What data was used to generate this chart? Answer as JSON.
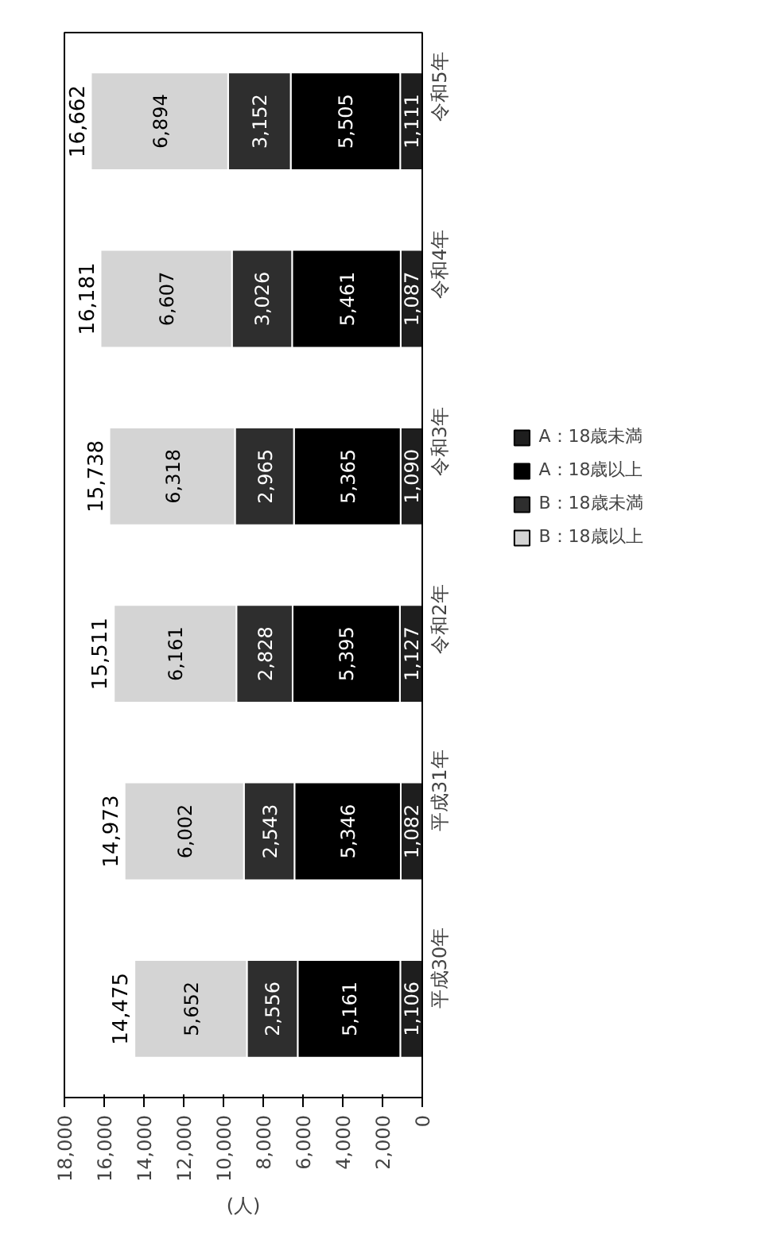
{
  "chart_data": {
    "type": "bar",
    "orientation": "horizontal",
    "stacked": true,
    "xlabel": "(人)",
    "categories": [
      "令和5年",
      "令和4年",
      "令和3年",
      "令和2年",
      "平成31年",
      "平成30年"
    ],
    "series": [
      {
        "name": "A：18歳未満",
        "color": "#1e1e1e",
        "values": [
          1111,
          1087,
          1090,
          1127,
          1082,
          1106
        ],
        "value_labels": [
          "1,111",
          "1,087",
          "1,090",
          "1,127",
          "1,082",
          "1,106"
        ]
      },
      {
        "name": "A：18歳以上",
        "color": "#000000",
        "values": [
          5505,
          5461,
          5365,
          5395,
          5346,
          5161
        ],
        "value_labels": [
          "5,505",
          "5,461",
          "5,365",
          "5,395",
          "5,346",
          "5,161"
        ]
      },
      {
        "name": "B：18歳未満",
        "color": "#2e2e2e",
        "values": [
          3152,
          3026,
          2965,
          2828,
          2543,
          2556
        ],
        "value_labels": [
          "3,152",
          "3,026",
          "2,965",
          "2,828",
          "2,543",
          "2,556"
        ]
      },
      {
        "name": "B：18歳以上",
        "color": "#d4d4d4",
        "values": [
          6894,
          6607,
          6318,
          6161,
          6002,
          5652
        ],
        "value_labels": [
          "6,894",
          "6,607",
          "6,318",
          "6,161",
          "6,002",
          "5,652"
        ]
      }
    ],
    "totals": [
      "16,662",
      "16,181",
      "15,738",
      "15,511",
      "14,973",
      "14,475"
    ],
    "data_labels": true,
    "xlim": [
      18000,
      0
    ],
    "xticks": [
      {
        "value": 18000,
        "label": "18,000"
      },
      {
        "value": 16000,
        "label": "16,000"
      },
      {
        "value": 14000,
        "label": "14,000"
      },
      {
        "value": 12000,
        "label": "12,000"
      },
      {
        "value": 10000,
        "label": "10,000"
      },
      {
        "value": 8000,
        "label": "8,000"
      },
      {
        "value": 6000,
        "label": "6,000"
      },
      {
        "value": 4000,
        "label": "4,000"
      },
      {
        "value": 2000,
        "label": "2,000"
      },
      0
    ],
    "grid": false,
    "legend": "right"
  }
}
